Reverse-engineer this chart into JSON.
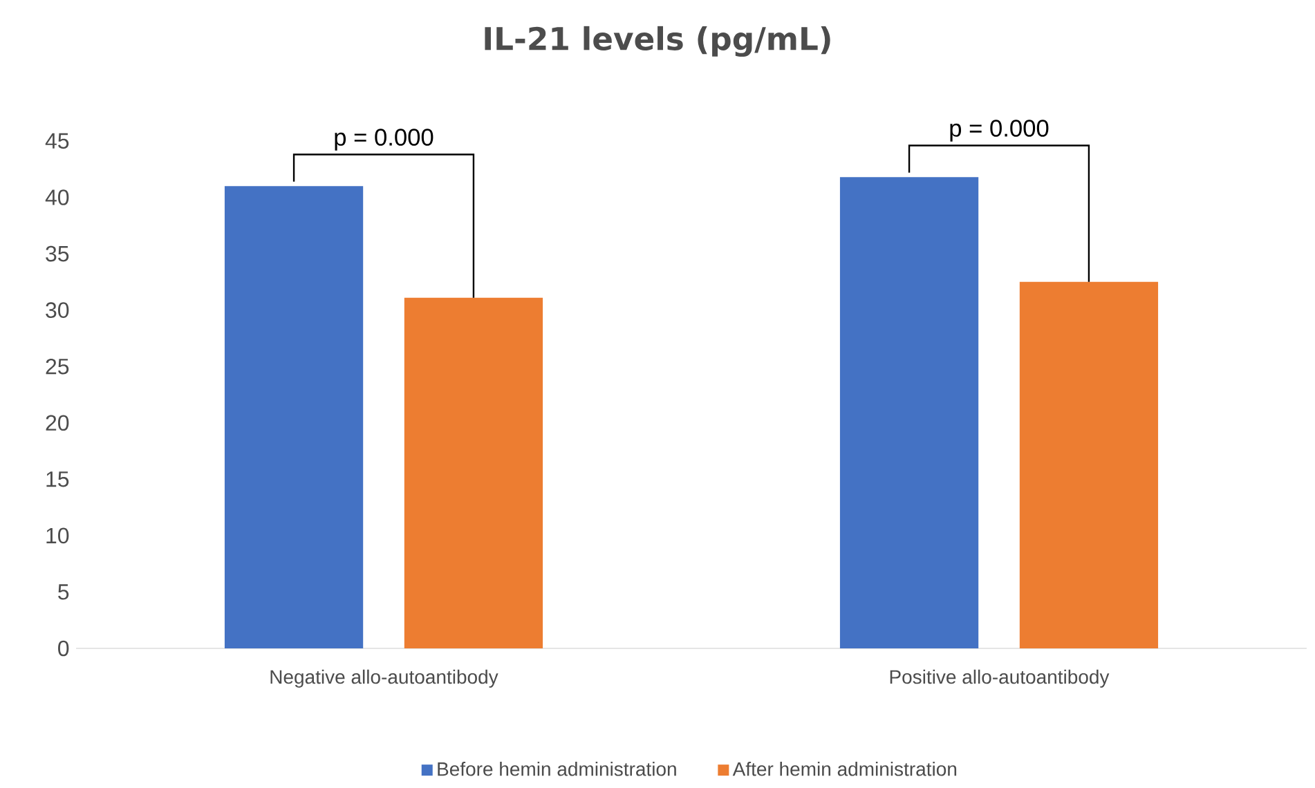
{
  "chart_data": {
    "type": "bar",
    "title": "IL-21 levels (pg/mL)",
    "categories": [
      "Negative allo-autoantibody",
      "Positive allo-autoantibody"
    ],
    "series": [
      {
        "name": "Before hemin administration",
        "color": "#4472c4",
        "values": [
          41,
          41.8
        ]
      },
      {
        "name": "After hemin administration",
        "color": "#ed7d31",
        "values": [
          31.1,
          32.5
        ]
      }
    ],
    "ylim": [
      0,
      45
    ],
    "yticks": [
      0,
      5,
      10,
      15,
      20,
      25,
      30,
      35,
      40,
      45
    ],
    "legend": "bottom",
    "annotations": [
      "p = 0.000",
      "p = 0.000"
    ]
  }
}
